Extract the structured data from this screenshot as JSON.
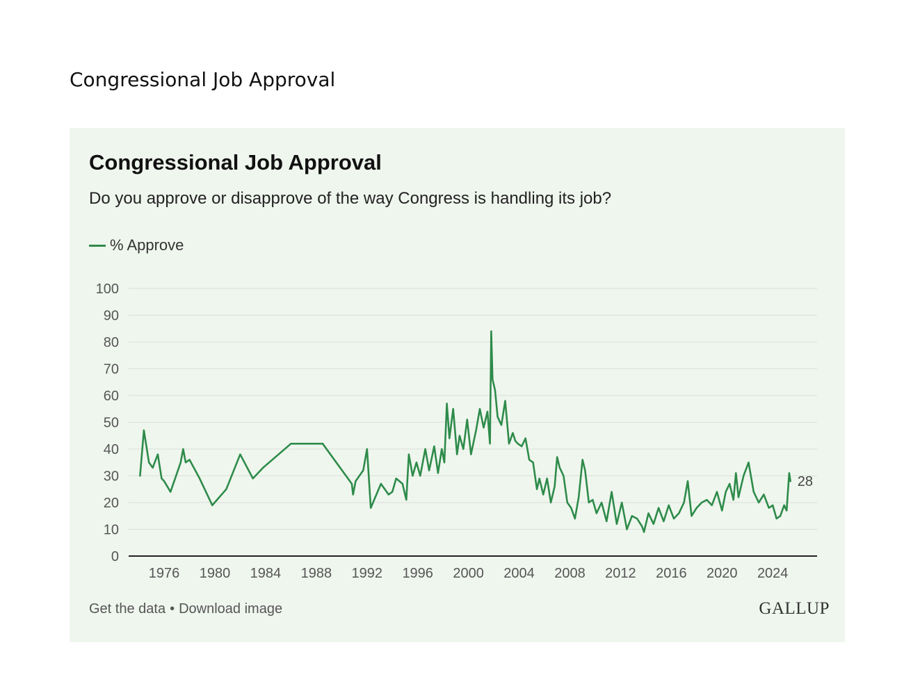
{
  "document": {
    "title": "Congressional Job Approval"
  },
  "card": {
    "title": "Congressional Job Approval",
    "subtitle": "Do you approve or disapprove of the way Congress is handling its job?",
    "footer": {
      "get_data": "Get the data",
      "separator": "•",
      "download": "Download image"
    },
    "logo": "GALLUP"
  },
  "colors": {
    "line": "#2e8b4a",
    "card_background": "#eff6ee",
    "grid": "#dcdfdb",
    "axis": "#222222"
  },
  "chart_data": {
    "type": "line",
    "title": "Congressional Job Approval",
    "subtitle": "Do you approve or disapprove of the way Congress is handling its job?",
    "legend_position": "top-left",
    "grid": true,
    "xlim": [
      1973.2,
      2027.5
    ],
    "ylim": [
      0,
      100
    ],
    "x_ticks": [
      1976,
      1980,
      1984,
      1988,
      1992,
      1996,
      2000,
      2004,
      2008,
      2012,
      2016,
      2020,
      2024
    ],
    "x_tick_labels": [
      "1976",
      "1980",
      "1984",
      "1988",
      "1992",
      "1996",
      "2000",
      "2004",
      "2008",
      "2012",
      "2016",
      "2020",
      "2024"
    ],
    "y_ticks": [
      0,
      10,
      20,
      30,
      40,
      50,
      60,
      70,
      80,
      90,
      100
    ],
    "y_tick_labels": [
      "0",
      "10",
      "20",
      "30",
      "40",
      "50",
      "60",
      "70",
      "80",
      "90",
      "100"
    ],
    "end_label": "28",
    "series": [
      {
        "name": "% Approve",
        "x": [
          1974.1,
          1974.4,
          1974.8,
          1975.1,
          1975.5,
          1975.8,
          1976.0,
          1976.5,
          1977.3,
          1977.5,
          1977.7,
          1978.0,
          1978.8,
          1979.8,
          1980.9,
          1982.0,
          1983.0,
          1983.8,
          1986.0,
          1988.5,
          1990.8,
          1990.9,
          1991.1,
          1991.7,
          1992.0,
          1992.3,
          1993.1,
          1993.7,
          1994.0,
          1994.3,
          1994.8,
          1995.1,
          1995.3,
          1995.6,
          1995.9,
          1996.2,
          1996.6,
          1996.9,
          1997.3,
          1997.6,
          1997.9,
          1998.1,
          1998.3,
          1998.5,
          1998.8,
          1999.1,
          1999.3,
          1999.6,
          1999.9,
          2000.2,
          2000.6,
          2000.9,
          2001.2,
          2001.5,
          2001.7,
          2001.8,
          2001.9,
          2002.1,
          2002.3,
          2002.6,
          2002.9,
          2003.2,
          2003.5,
          2003.7,
          2003.9,
          2004.2,
          2004.5,
          2004.8,
          2005.1,
          2005.4,
          2005.6,
          2005.9,
          2006.2,
          2006.5,
          2006.8,
          2007.0,
          2007.2,
          2007.5,
          2007.8,
          2008.1,
          2008.4,
          2008.7,
          2009.0,
          2009.2,
          2009.5,
          2009.8,
          2010.1,
          2010.5,
          2010.9,
          2011.3,
          2011.7,
          2012.1,
          2012.5,
          2012.9,
          2013.3,
          2013.7,
          2013.85,
          2014.2,
          2014.6,
          2015.0,
          2015.4,
          2015.8,
          2016.2,
          2016.6,
          2017.0,
          2017.3,
          2017.6,
          2018.0,
          2018.4,
          2018.8,
          2019.2,
          2019.6,
          2020.0,
          2020.3,
          2020.6,
          2020.9,
          2021.1,
          2021.3,
          2021.7,
          2022.1,
          2022.5,
          2022.9,
          2023.3,
          2023.7,
          2024.0,
          2024.3,
          2024.6,
          2024.9,
          2025.1,
          2025.3,
          2025.4
        ],
        "values": [
          30,
          47,
          35,
          33,
          38,
          29,
          28,
          24,
          35,
          40,
          35,
          36,
          29,
          19,
          25,
          38,
          29,
          33,
          42,
          42,
          27,
          23,
          28,
          32,
          40,
          18,
          27,
          23,
          24,
          29,
          27,
          21,
          38,
          30,
          35,
          30,
          40,
          32,
          41,
          31,
          40,
          35,
          57,
          44,
          55,
          38,
          45,
          40,
          51,
          38,
          47,
          55,
          48,
          54,
          42,
          84,
          66,
          62,
          52,
          49,
          58,
          42,
          46,
          43,
          42,
          41,
          44,
          36,
          35,
          25,
          29,
          23,
          29,
          20,
          26,
          37,
          33,
          30,
          20,
          18,
          14,
          22,
          36,
          32,
          20,
          21,
          16,
          20,
          13,
          24,
          12,
          20,
          10,
          15,
          14,
          11,
          9,
          16,
          12,
          18,
          13,
          19,
          14,
          16,
          20,
          28,
          15,
          18,
          20,
          21,
          19,
          24,
          17,
          24,
          27,
          21,
          31,
          22,
          30,
          35,
          24,
          20,
          23,
          18,
          19,
          14,
          15,
          19,
          17,
          31,
          28
        ]
      }
    ]
  }
}
